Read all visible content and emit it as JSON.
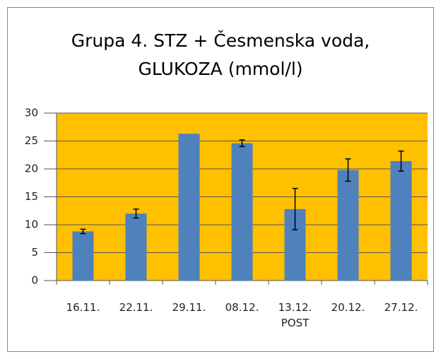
{
  "chart_data": {
    "type": "bar",
    "title": [
      "Grupa 4. STZ + Česmenska voda,",
      "GLUKOZA (mmol/l)"
    ],
    "categories": [
      "16.11.",
      "22.11.",
      "29.11.",
      "08.12.",
      "13.12. POST",
      "20.12.",
      "27.12."
    ],
    "values": [
      8.8,
      12.0,
      26.3,
      24.6,
      12.8,
      19.8,
      21.4
    ],
    "errors": [
      0.4,
      0.8,
      null,
      0.6,
      3.7,
      2.0,
      1.8
    ],
    "color": "#4f81bd",
    "plot_background": "#ffc000",
    "ylim": [
      0,
      30
    ],
    "yticks": [
      0,
      5,
      10,
      15,
      20,
      25,
      30
    ],
    "grid": true
  }
}
